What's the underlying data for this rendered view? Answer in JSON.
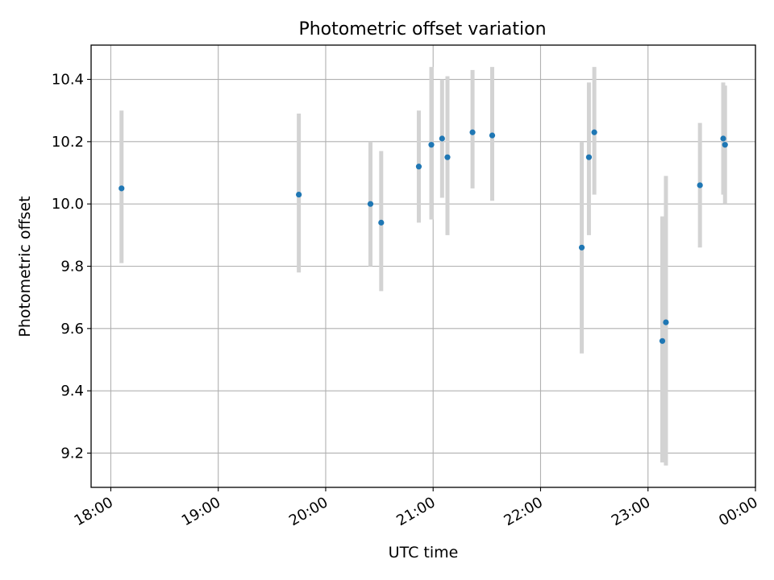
{
  "chart_data": {
    "type": "scatter",
    "title": "Photometric offset variation",
    "xlabel": "UTC time",
    "ylabel": "Photometric offset",
    "xlim": [
      "17:49",
      "00:00"
    ],
    "ylim": [
      9.09,
      10.51
    ],
    "x_ticks": [
      "18:00",
      "19:00",
      "20:00",
      "21:00",
      "22:00",
      "23:00",
      "00:00"
    ],
    "y_ticks": [
      9.2,
      9.4,
      9.6,
      9.8,
      10.0,
      10.2,
      10.4
    ],
    "y_tick_labels": [
      "9.2",
      "9.4",
      "9.6",
      "9.8",
      "10.0",
      "10.2",
      "10.4"
    ],
    "grid": true,
    "point_color": "#1f77b4",
    "errorbar_color": "#d3d3d3",
    "points": [
      {
        "t": "18:06",
        "y": 10.05,
        "lo": 9.81,
        "hi": 10.3
      },
      {
        "t": "19:45",
        "y": 10.03,
        "lo": 9.78,
        "hi": 10.29
      },
      {
        "t": "20:25",
        "y": 10.0,
        "lo": 9.8,
        "hi": 10.2
      },
      {
        "t": "20:31",
        "y": 9.94,
        "lo": 9.72,
        "hi": 10.17
      },
      {
        "t": "20:52",
        "y": 10.12,
        "lo": 9.94,
        "hi": 10.3
      },
      {
        "t": "20:59",
        "y": 10.19,
        "lo": 9.95,
        "hi": 10.44
      },
      {
        "t": "21:05",
        "y": 10.21,
        "lo": 10.02,
        "hi": 10.4
      },
      {
        "t": "21:08",
        "y": 10.15,
        "lo": 9.9,
        "hi": 10.41
      },
      {
        "t": "21:22",
        "y": 10.23,
        "lo": 10.05,
        "hi": 10.43
      },
      {
        "t": "21:33",
        "y": 10.22,
        "lo": 10.01,
        "hi": 10.44
      },
      {
        "t": "22:23",
        "y": 9.86,
        "lo": 9.52,
        "hi": 10.2
      },
      {
        "t": "22:27",
        "y": 10.15,
        "lo": 9.9,
        "hi": 10.39
      },
      {
        "t": "22:30",
        "y": 10.23,
        "lo": 10.03,
        "hi": 10.44
      },
      {
        "t": "23:08",
        "y": 9.56,
        "lo": 9.17,
        "hi": 9.96
      },
      {
        "t": "23:10",
        "y": 9.62,
        "lo": 9.16,
        "hi": 10.09
      },
      {
        "t": "23:29",
        "y": 10.06,
        "lo": 9.86,
        "hi": 10.26
      },
      {
        "t": "23:42",
        "y": 10.21,
        "lo": 10.03,
        "hi": 10.39
      },
      {
        "t": "23:43",
        "y": 10.19,
        "lo": 10.0,
        "hi": 10.38
      }
    ]
  }
}
